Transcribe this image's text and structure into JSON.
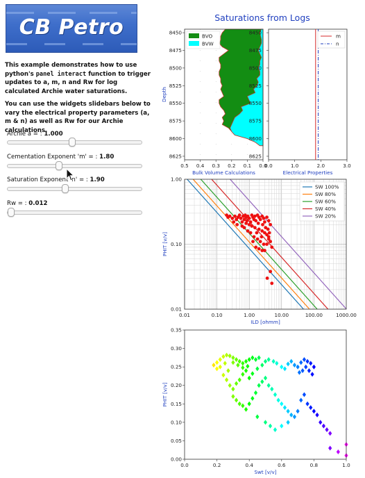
{
  "logo": {
    "text": "CB Petro"
  },
  "description": {
    "p1_before": "This example demonstrates how to use python's",
    "p1_code": "panel interact",
    "p1_after": "function to trigger updates to a, m, n and Rw for log calculated Archie water saturations.",
    "p2": "You can use the widgets slidebars below to vary the electrical property parameters (a, m & n) as well as Rw for our Archie calculations."
  },
  "widgets": [
    {
      "label": "Archie a = : ",
      "value": "1.000",
      "fraction": 0.5
    },
    {
      "label": "Cementation Exponent 'm' = : ",
      "value": "1.80",
      "fraction": 0.4
    },
    {
      "label": "Saturation Exponent 'n' = : ",
      "value": "1.90",
      "fraction": 0.45
    },
    {
      "label": "Rw = : ",
      "value": "0.012",
      "fraction": 0.02
    }
  ],
  "figure_title": "Saturations from Logs",
  "chart_data": [
    {
      "type": "area",
      "panel": "Bulk Volume",
      "xlabel": "Bulk Volume Calculations",
      "ylabel": "Depth",
      "xlim": [
        0.5,
        0.0
      ],
      "ylim": [
        8630,
        8445
      ],
      "xticks": [
        "0.5",
        "0.4",
        "0.3",
        "0.2",
        "0.1",
        "0.0"
      ],
      "yticks": [
        "8450",
        "8475",
        "8500",
        "8525",
        "8550",
        "8575",
        "8600",
        "8625"
      ],
      "legend": [
        "BVO",
        "BVW"
      ],
      "colors": {
        "BVO": "#138d13",
        "BVW": "#00ffff",
        "edge": "#c0392b"
      },
      "depth": [
        8445,
        8450,
        8455,
        8460,
        8465,
        8470,
        8475,
        8480,
        8485,
        8490,
        8495,
        8500,
        8505,
        8510,
        8515,
        8520,
        8525,
        8530,
        8535,
        8540,
        8545,
        8550,
        8555,
        8560,
        8565,
        8570,
        8575,
        8580,
        8585,
        8590,
        8595,
        8600,
        8605,
        8610
      ],
      "phit": [
        0.24,
        0.26,
        0.27,
        0.27,
        0.28,
        0.26,
        0.22,
        0.25,
        0.28,
        0.28,
        0.27,
        0.27,
        0.28,
        0.28,
        0.27,
        0.27,
        0.26,
        0.27,
        0.26,
        0.25,
        0.28,
        0.28,
        0.27,
        0.25,
        0.24,
        0.26,
        0.25,
        0.26,
        0.22,
        0.2,
        0.18,
        0.1,
        0.05,
        0.02
      ],
      "bvw": [
        0.01,
        0.02,
        0.015,
        0.01,
        0.01,
        0.02,
        0.03,
        0.02,
        0.01,
        0.02,
        0.02,
        0.03,
        0.02,
        0.02,
        0.04,
        0.03,
        0.04,
        0.06,
        0.05,
        0.1,
        0.09,
        0.08,
        0.14,
        0.13,
        0.15,
        0.18,
        0.19,
        0.2,
        0.21,
        0.2,
        0.18,
        0.1,
        0.05,
        0.02
      ]
    },
    {
      "type": "line",
      "panel": "Electrical Properties",
      "xlabel": "Electrical Properties",
      "xlim": [
        0.0,
        3.0
      ],
      "ylim": [
        8630,
        8445
      ],
      "xticks": [
        "0.0",
        "1.0",
        "2.0",
        "3.0"
      ],
      "yticks": [
        "8450",
        "8475",
        "8500",
        "8525",
        "8550",
        "8575",
        "8600",
        "8625"
      ],
      "series": [
        {
          "name": "m",
          "value": 1.8,
          "color": "#d62728",
          "dash": false
        },
        {
          "name": "n",
          "value": 1.9,
          "color": "#1f3fbf",
          "dash": true
        }
      ]
    },
    {
      "type": "scatter",
      "panel": "Pickett",
      "xlabel": "ILD [ohmm]",
      "ylabel": "PHIT [v/v]",
      "xscale": "log",
      "yscale": "log",
      "xlim": [
        0.01,
        1000
      ],
      "ylim": [
        0.01,
        1.0
      ],
      "xticks": [
        "0.01",
        "0.10",
        "1.00",
        "10.00",
        "100.00",
        "1000.00"
      ],
      "yticks": [
        "0.01",
        "0.10",
        "1.00"
      ],
      "legend": [
        "SW 100%",
        "SW 80%",
        "SW 60%",
        "SW 40%",
        "SW 20%"
      ],
      "sw_lines": [
        {
          "name": "SW 100%",
          "sw": 1.0,
          "color": "#1f77b4"
        },
        {
          "name": "SW 80%",
          "sw": 0.8,
          "color": "#ff7f0e"
        },
        {
          "name": "SW 60%",
          "sw": 0.6,
          "color": "#2ca02c"
        },
        {
          "name": "SW 40%",
          "sw": 0.4,
          "color": "#d62728"
        },
        {
          "name": "SW 20%",
          "sw": 0.2,
          "color": "#9467bd"
        }
      ],
      "points_color": "#ee1111",
      "points": [
        [
          0.2,
          0.28
        ],
        [
          0.22,
          0.26
        ],
        [
          0.25,
          0.27
        ],
        [
          0.3,
          0.25
        ],
        [
          0.33,
          0.22
        ],
        [
          0.36,
          0.27
        ],
        [
          0.4,
          0.24
        ],
        [
          0.42,
          0.2
        ],
        [
          0.45,
          0.26
        ],
        [
          0.5,
          0.28
        ],
        [
          0.55,
          0.25
        ],
        [
          0.6,
          0.22
        ],
        [
          0.65,
          0.27
        ],
        [
          0.7,
          0.24
        ],
        [
          0.75,
          0.28
        ],
        [
          0.8,
          0.26
        ],
        [
          0.85,
          0.23
        ],
        [
          0.9,
          0.27
        ],
        [
          1.0,
          0.25
        ],
        [
          1.1,
          0.22
        ],
        [
          1.2,
          0.28
        ],
        [
          1.3,
          0.26
        ],
        [
          1.4,
          0.24
        ],
        [
          1.5,
          0.27
        ],
        [
          1.6,
          0.23
        ],
        [
          1.8,
          0.28
        ],
        [
          2.0,
          0.26
        ],
        [
          2.2,
          0.24
        ],
        [
          2.5,
          0.27
        ],
        [
          2.8,
          0.25
        ],
        [
          3.0,
          0.22
        ],
        [
          3.5,
          0.26
        ],
        [
          4.0,
          0.23
        ],
        [
          4.5,
          0.2
        ],
        [
          1.0,
          0.2
        ],
        [
          1.2,
          0.19
        ],
        [
          1.5,
          0.18
        ],
        [
          2.0,
          0.17
        ],
        [
          2.5,
          0.16
        ],
        [
          3.0,
          0.15
        ],
        [
          3.5,
          0.14
        ],
        [
          4.0,
          0.13
        ],
        [
          0.7,
          0.18
        ],
        [
          0.9,
          0.16
        ],
        [
          1.1,
          0.15
        ],
        [
          1.4,
          0.13
        ],
        [
          1.8,
          0.12
        ],
        [
          2.2,
          0.11
        ],
        [
          2.8,
          0.1
        ],
        [
          3.5,
          0.1
        ],
        [
          4.0,
          0.12
        ],
        [
          4.5,
          0.11
        ],
        [
          5.0,
          0.09
        ],
        [
          1.6,
          0.09
        ],
        [
          2.0,
          0.085
        ],
        [
          2.5,
          0.08
        ],
        [
          3.0,
          0.08
        ],
        [
          1.3,
          0.11
        ],
        [
          0.8,
          0.21
        ],
        [
          0.6,
          0.19
        ],
        [
          4.5,
          0.038
        ],
        [
          5.0,
          0.025
        ],
        [
          3.6,
          0.03
        ],
        [
          2.6,
          0.2
        ],
        [
          3.2,
          0.18
        ],
        [
          3.8,
          0.17
        ],
        [
          4.2,
          0.15
        ],
        [
          2.4,
          0.13
        ],
        [
          1.9,
          0.21
        ],
        [
          1.7,
          0.15
        ]
      ]
    },
    {
      "type": "scatter",
      "panel": "Crossplot",
      "xlabel": "Swt [v/v]",
      "ylabel": "PHIT [v/v]",
      "xlim": [
        0.0,
        1.0
      ],
      "ylim": [
        0.0,
        0.35
      ],
      "xticks": [
        "0.0",
        "0.2",
        "0.4",
        "0.6",
        "0.8",
        "1.0"
      ],
      "yticks": [
        "0.00",
        "0.05",
        "0.10",
        "0.15",
        "0.20",
        "0.25",
        "0.30",
        "0.35"
      ],
      "points": [
        [
          0.18,
          0.255
        ],
        [
          0.2,
          0.262
        ],
        [
          0.22,
          0.27
        ],
        [
          0.24,
          0.278
        ],
        [
          0.26,
          0.282
        ],
        [
          0.28,
          0.28
        ],
        [
          0.3,
          0.275
        ],
        [
          0.32,
          0.27
        ],
        [
          0.34,
          0.265
        ],
        [
          0.36,
          0.26
        ],
        [
          0.38,
          0.265
        ],
        [
          0.4,
          0.27
        ],
        [
          0.42,
          0.275
        ],
        [
          0.44,
          0.27
        ],
        [
          0.46,
          0.275
        ],
        [
          0.2,
          0.245
        ],
        [
          0.22,
          0.25
        ],
        [
          0.25,
          0.26
        ],
        [
          0.27,
          0.24
        ],
        [
          0.3,
          0.262
        ],
        [
          0.33,
          0.255
        ],
        [
          0.36,
          0.248
        ],
        [
          0.39,
          0.252
        ],
        [
          0.24,
          0.228
        ],
        [
          0.26,
          0.215
        ],
        [
          0.28,
          0.2
        ],
        [
          0.3,
          0.19
        ],
        [
          0.32,
          0.205
        ],
        [
          0.34,
          0.215
        ],
        [
          0.36,
          0.23
        ],
        [
          0.38,
          0.24
        ],
        [
          0.4,
          0.22
        ],
        [
          0.42,
          0.232
        ],
        [
          0.45,
          0.245
        ],
        [
          0.48,
          0.255
        ],
        [
          0.5,
          0.265
        ],
        [
          0.52,
          0.27
        ],
        [
          0.55,
          0.265
        ],
        [
          0.57,
          0.26
        ],
        [
          0.6,
          0.25
        ],
        [
          0.62,
          0.245
        ],
        [
          0.64,
          0.258
        ],
        [
          0.66,
          0.265
        ],
        [
          0.68,
          0.255
        ],
        [
          0.7,
          0.25
        ],
        [
          0.72,
          0.262
        ],
        [
          0.74,
          0.27
        ],
        [
          0.76,
          0.265
        ],
        [
          0.78,
          0.26
        ],
        [
          0.8,
          0.25
        ],
        [
          0.79,
          0.23
        ],
        [
          0.77,
          0.24
        ],
        [
          0.75,
          0.25
        ],
        [
          0.73,
          0.24
        ],
        [
          0.71,
          0.235
        ],
        [
          0.3,
          0.17
        ],
        [
          0.32,
          0.16
        ],
        [
          0.34,
          0.15
        ],
        [
          0.36,
          0.145
        ],
        [
          0.38,
          0.135
        ],
        [
          0.4,
          0.15
        ],
        [
          0.42,
          0.165
        ],
        [
          0.44,
          0.18
        ],
        [
          0.46,
          0.2
        ],
        [
          0.48,
          0.21
        ],
        [
          0.5,
          0.22
        ],
        [
          0.52,
          0.2
        ],
        [
          0.54,
          0.19
        ],
        [
          0.56,
          0.175
        ],
        [
          0.58,
          0.16
        ],
        [
          0.6,
          0.15
        ],
        [
          0.62,
          0.14
        ],
        [
          0.64,
          0.13
        ],
        [
          0.66,
          0.12
        ],
        [
          0.68,
          0.115
        ],
        [
          0.7,
          0.13
        ],
        [
          0.72,
          0.16
        ],
        [
          0.74,
          0.175
        ],
        [
          0.76,
          0.15
        ],
        [
          0.78,
          0.14
        ],
        [
          0.8,
          0.13
        ],
        [
          0.82,
          0.12
        ],
        [
          0.84,
          0.1
        ],
        [
          0.86,
          0.09
        ],
        [
          0.88,
          0.08
        ],
        [
          0.9,
          0.07
        ],
        [
          0.45,
          0.115
        ],
        [
          0.5,
          0.1
        ],
        [
          0.53,
          0.09
        ],
        [
          0.56,
          0.08
        ],
        [
          0.6,
          0.09
        ],
        [
          0.64,
          0.1
        ],
        [
          0.9,
          0.03
        ],
        [
          0.95,
          0.02
        ],
        [
          1.0,
          0.01
        ],
        [
          1.0,
          0.04
        ]
      ],
      "colormap": "hsv"
    }
  ]
}
